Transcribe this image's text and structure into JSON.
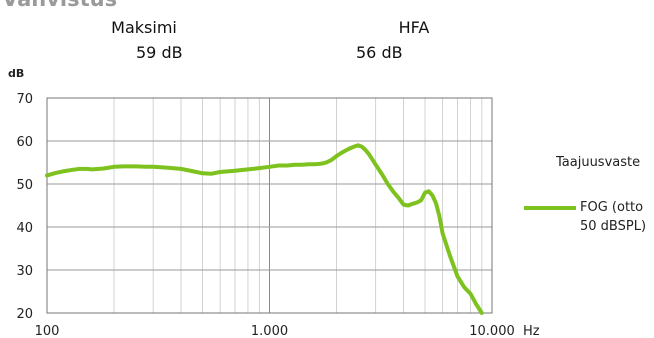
{
  "header": {
    "title": "Vahvistus"
  },
  "stats": [
    {
      "label": "Maksimi",
      "value": "59 dB"
    },
    {
      "label": "HFA",
      "value": "56 dB"
    }
  ],
  "legend": {
    "title": "Taajuusvaste",
    "items": [
      {
        "label": "FOG (otto 50 dBSPL)",
        "color": "#7dc21e"
      }
    ]
  },
  "chart_data": {
    "type": "line",
    "title": "",
    "xlabel": "Hz",
    "ylabel": "dB",
    "x_scale": "log",
    "xlim": [
      100,
      10000
    ],
    "ylim": [
      20,
      70
    ],
    "x_ticks": [
      100,
      1000,
      10000
    ],
    "x_tick_labels": [
      "100",
      "1.000",
      "10.000"
    ],
    "y_ticks": [
      20,
      30,
      40,
      50,
      60,
      70
    ],
    "grid": true,
    "legend_position": "right",
    "series": [
      {
        "name": "FOG (otto 50 dBSPL)",
        "color": "#7dc21e",
        "x": [
          100,
          110,
          120,
          130,
          140,
          150,
          160,
          180,
          200,
          220,
          250,
          280,
          300,
          350,
          400,
          450,
          500,
          550,
          600,
          700,
          800,
          900,
          1000,
          1100,
          1200,
          1300,
          1400,
          1500,
          1600,
          1700,
          1800,
          1900,
          2000,
          2100,
          2200,
          2300,
          2400,
          2500,
          2600,
          2700,
          2800,
          3000,
          3200,
          3400,
          3600,
          3800,
          4000,
          4200,
          4400,
          4600,
          4800,
          5000,
          5200,
          5400,
          5600,
          5800,
          6000,
          6500,
          7000,
          7500,
          8000,
          8500,
          9000
        ],
        "values": [
          52,
          52.6,
          53,
          53.3,
          53.5,
          53.5,
          53.4,
          53.6,
          54,
          54.1,
          54.1,
          54,
          54,
          53.8,
          53.5,
          53,
          52.5,
          52.4,
          52.8,
          53.1,
          53.4,
          53.7,
          54,
          54.3,
          54.3,
          54.5,
          54.5,
          54.6,
          54.6,
          54.7,
          55,
          55.6,
          56.5,
          57.2,
          57.8,
          58.3,
          58.7,
          59,
          58.7,
          57.9,
          56.9,
          54.5,
          52.3,
          50,
          48.2,
          46.8,
          45.2,
          45,
          45.4,
          45.7,
          46.2,
          48,
          48.3,
          47.3,
          45.5,
          42.5,
          38.5,
          33,
          28.5,
          26,
          24.5,
          22,
          20
        ]
      }
    ]
  }
}
